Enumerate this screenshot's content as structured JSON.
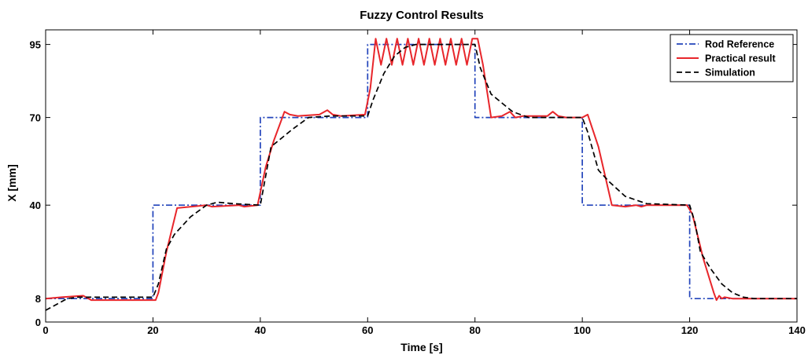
{
  "chart_data": {
    "type": "line",
    "title": "Fuzzy Control Results",
    "xlabel": "Time [s]",
    "ylabel": "X [mm]",
    "xlim": [
      0,
      140
    ],
    "ylim": [
      0,
      100
    ],
    "xticks": [
      0,
      20,
      40,
      60,
      80,
      100,
      120,
      140
    ],
    "yticks": [
      0,
      8,
      40,
      70,
      95
    ],
    "grid": false,
    "legend_position": "top-right",
    "series": [
      {
        "name": "Rod Reference",
        "color": "#2244bb",
        "style": "dash-dot",
        "x": [
          0,
          20,
          20,
          40,
          40,
          60,
          60,
          80,
          80,
          100,
          100,
          120,
          120,
          140
        ],
        "y": [
          8,
          8,
          40,
          40,
          70,
          70,
          95,
          95,
          70,
          70,
          40,
          40,
          8,
          8
        ]
      },
      {
        "name": "Practical result",
        "color": "#e8262b",
        "style": "solid",
        "x": [
          0,
          3,
          7,
          8.5,
          20.5,
          21,
          22.5,
          24.5,
          30,
          31,
          36,
          37,
          39.5,
          41,
          42.5,
          44.5,
          45.5,
          47,
          51,
          52.5,
          53.5,
          55,
          59.5,
          60.5,
          61.5,
          62.5,
          63.5,
          64.5,
          65.5,
          66.5,
          67.5,
          68.5,
          69.5,
          70.5,
          71.5,
          72.5,
          73.5,
          74.5,
          75.5,
          76.5,
          77.5,
          78.5,
          79.5,
          80.5,
          81.5,
          83,
          85,
          86.5,
          87.5,
          89,
          93.5,
          94.5,
          95.5,
          97,
          100,
          101,
          103,
          105.5,
          108,
          110,
          111,
          112,
          117.5,
          119.5,
          120.5,
          122.5,
          124.5,
          125,
          125.5,
          126,
          126.5,
          128,
          130,
          132,
          135,
          140
        ],
        "y": [
          8,
          8.5,
          9,
          7.5,
          7.5,
          10,
          24,
          39,
          40,
          39.5,
          40,
          39.5,
          40,
          53,
          62,
          72,
          71,
          70.5,
          71,
          72.5,
          71,
          70.5,
          71,
          80,
          97,
          88,
          97,
          88,
          97,
          88,
          97,
          88,
          97,
          88,
          97,
          88,
          97,
          88,
          97,
          88,
          97,
          88,
          97,
          97,
          88,
          70,
          70.5,
          72,
          70,
          70.5,
          70.5,
          72,
          70.5,
          70,
          70,
          71,
          60,
          40,
          39.5,
          40,
          39.5,
          40,
          40,
          40,
          37,
          22,
          10,
          7.5,
          9,
          8,
          8.5,
          8,
          8,
          8,
          8,
          8
        ]
      },
      {
        "name": "Simulation",
        "color": "#000000",
        "style": "dashed",
        "x": [
          0,
          2,
          4,
          6,
          20,
          21,
          22.5,
          24,
          27,
          30,
          32,
          35,
          40,
          42,
          46,
          49,
          53,
          60,
          61,
          63,
          65,
          67,
          69,
          71,
          80,
          81,
          83,
          85,
          87,
          90,
          100,
          101,
          103,
          105,
          108,
          112,
          120,
          121,
          122,
          124,
          126,
          128,
          130,
          132,
          140
        ],
        "y": [
          4,
          6,
          8,
          8.5,
          8.5,
          13,
          25,
          30,
          36,
          40,
          41,
          40.5,
          40,
          60,
          66,
          70,
          70.5,
          70.5,
          76,
          85,
          91,
          94,
          95,
          95,
          95,
          87,
          78,
          75,
          72,
          70,
          70,
          65,
          52,
          48,
          43,
          40.5,
          40,
          34,
          24,
          18,
          13,
          10,
          8.5,
          8,
          8
        ]
      }
    ]
  }
}
